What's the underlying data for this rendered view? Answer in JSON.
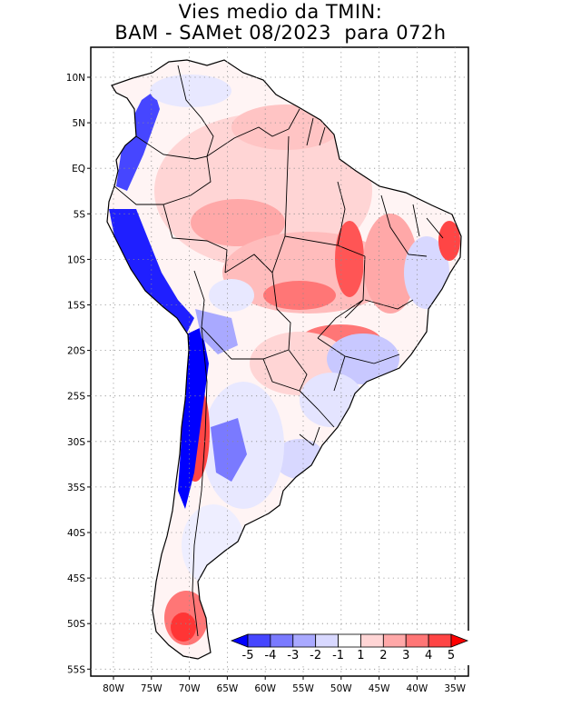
{
  "title": {
    "line1": "Vies medio da TMIN:",
    "line2": "BAM - SAMet 08/2023  para 072h"
  },
  "map": {
    "region": "South America",
    "lat_labels": [
      "10N",
      "5N",
      "EQ",
      "5S",
      "10S",
      "15S",
      "20S",
      "25S",
      "30S",
      "35S",
      "40S",
      "45S",
      "50S",
      "55S"
    ],
    "lon_labels": [
      "80W",
      "75W",
      "70W",
      "65W",
      "60W",
      "55W",
      "50W",
      "45W",
      "40W",
      "35W"
    ],
    "lat_range": [
      -56,
      13
    ],
    "lon_range": [
      -83,
      -34
    ],
    "grid": true,
    "grid_style": "dotted"
  },
  "colorbar": {
    "placement": "bottom-right inset",
    "labels": [
      "-5",
      "-4",
      "-3",
      "-2",
      "-1",
      "1",
      "2",
      "3",
      "4",
      "5"
    ],
    "colors": [
      "#0000ff",
      "#4646ff",
      "#7a7aff",
      "#a9a9ff",
      "#d8d8ff",
      "#ffffff",
      "#ffd5d5",
      "#ffa8a8",
      "#ff7676",
      "#ff4545",
      "#ff0000"
    ]
  },
  "field_colors": {
    "coast": "#000000",
    "border": "#000000",
    "background": "#ffffff"
  }
}
